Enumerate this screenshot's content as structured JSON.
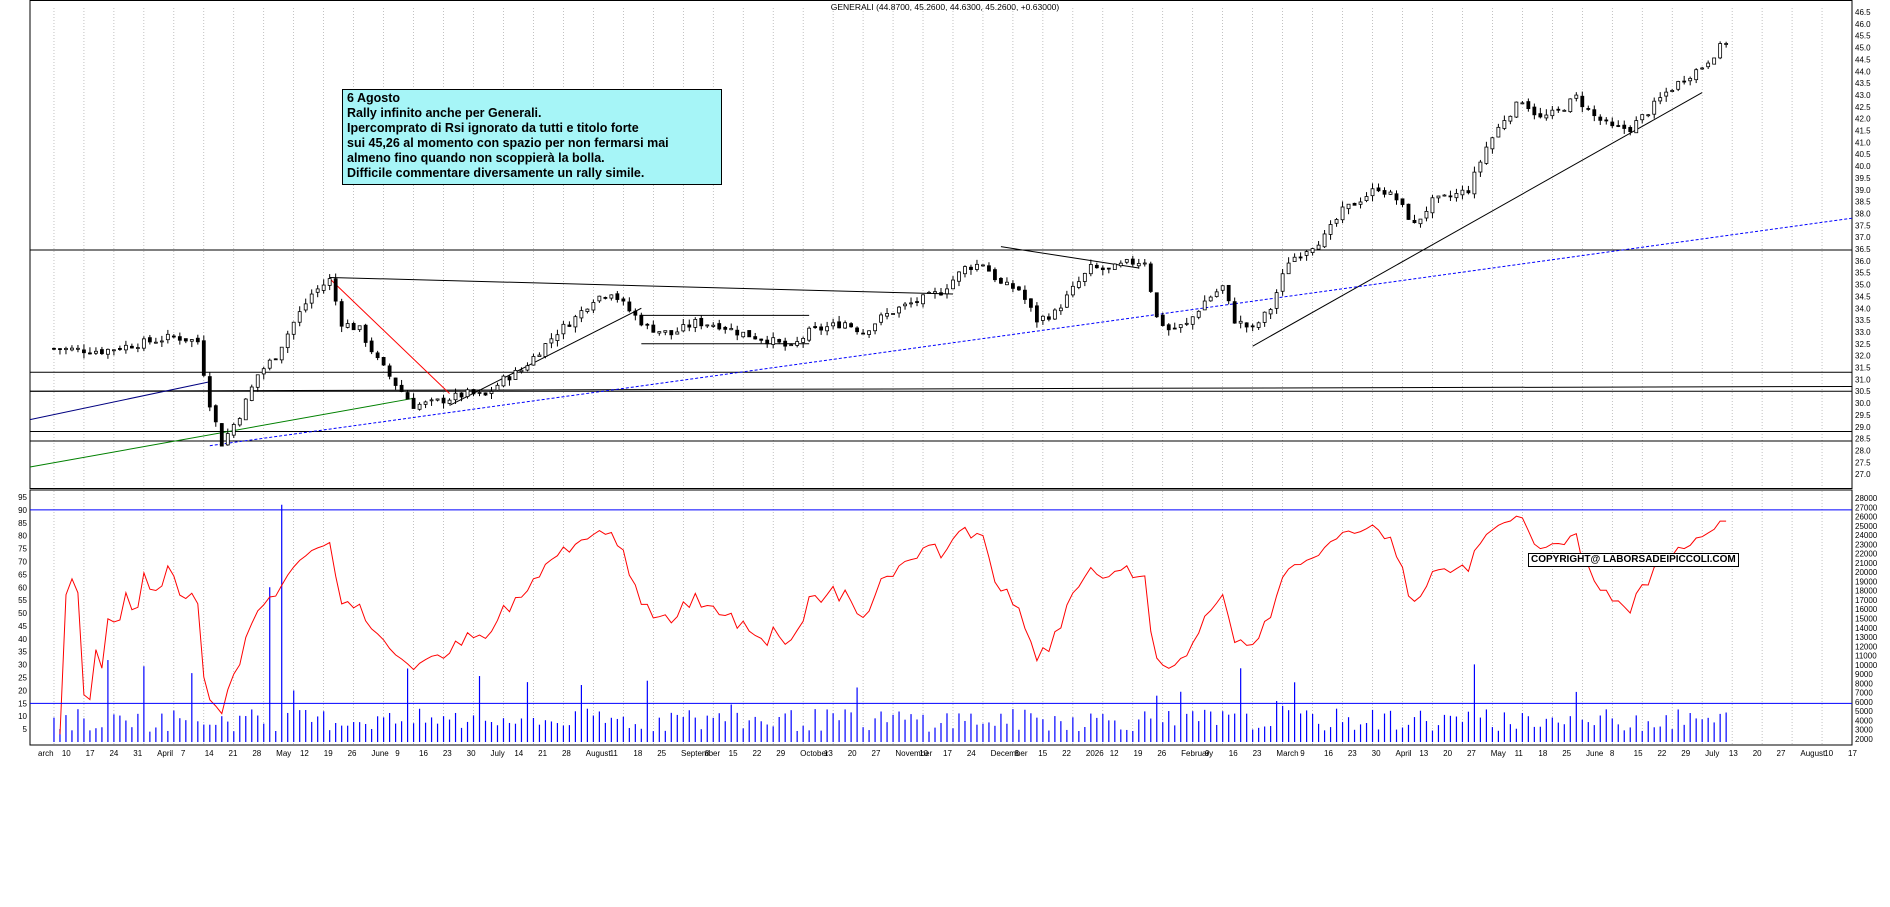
{
  "chart_data": [
    {
      "type": "candlestick",
      "title": "GENERALI (44.8700, 45.2600, 44.6300, 45.2600, +0.63000)",
      "ylim": [
        26.5,
        46.5
      ],
      "ytick_step": 0.5,
      "grid": "vertical dotted",
      "x_labels": [
        "arch",
        "10",
        "17",
        "24",
        "31",
        "April",
        "7",
        "14",
        "21",
        "28",
        "May",
        "12",
        "19",
        "26",
        "June",
        "9",
        "16",
        "23",
        "30",
        "July",
        "14",
        "21",
        "28",
        "August",
        "11",
        "18",
        "25",
        "September",
        "8",
        "15",
        "22",
        "29",
        "October",
        "13",
        "20",
        "27",
        "November",
        "10",
        "17",
        "24",
        "December",
        "8",
        "15",
        "22",
        "2026",
        "12",
        "19",
        "26",
        "February",
        "9",
        "16",
        "23",
        "March",
        "9",
        "16",
        "23",
        "30",
        "April",
        "13",
        "20",
        "27",
        "May",
        "11",
        "18",
        "25",
        "June",
        "8",
        "15",
        "22",
        "29",
        "July",
        "13",
        "20",
        "27",
        "August",
        "10",
        "17"
      ],
      "price_path": [
        [
          0,
          32.3
        ],
        [
          8,
          32.2
        ],
        [
          14,
          32.5
        ],
        [
          20,
          32.8
        ],
        [
          24,
          32.6
        ],
        [
          26,
          30.0
        ],
        [
          28,
          28.3
        ],
        [
          31,
          29.5
        ],
        [
          34,
          31.2
        ],
        [
          37,
          32.0
        ],
        [
          40,
          33.4
        ],
        [
          43,
          34.6
        ],
        [
          46,
          35.2
        ],
        [
          48,
          33.4
        ],
        [
          51,
          33.1
        ],
        [
          54,
          31.8
        ],
        [
          57,
          30.8
        ],
        [
          60,
          29.9
        ],
        [
          63,
          30.0
        ],
        [
          66,
          30.2
        ],
        [
          69,
          30.4
        ],
        [
          72,
          30.3
        ],
        [
          75,
          31.0
        ],
        [
          78,
          31.4
        ],
        [
          81,
          32.2
        ],
        [
          84,
          33.0
        ],
        [
          87,
          33.6
        ],
        [
          90,
          34.4
        ],
        [
          93,
          34.7
        ],
        [
          96,
          33.9
        ],
        [
          99,
          33.2
        ],
        [
          103,
          32.9
        ],
        [
          107,
          33.4
        ],
        [
          111,
          33.3
        ],
        [
          114,
          33.0
        ],
        [
          117,
          32.8
        ],
        [
          120,
          32.6
        ],
        [
          123,
          32.3
        ],
        [
          126,
          33.0
        ],
        [
          129,
          33.2
        ],
        [
          132,
          33.4
        ],
        [
          135,
          33.0
        ],
        [
          138,
          33.6
        ],
        [
          141,
          34.0
        ],
        [
          144,
          34.3
        ],
        [
          148,
          34.7
        ],
        [
          152,
          35.7
        ],
        [
          155,
          35.9
        ],
        [
          158,
          35.0
        ],
        [
          161,
          34.8
        ],
        [
          164,
          33.5
        ],
        [
          167,
          33.8
        ],
        [
          170,
          34.8
        ],
        [
          173,
          35.7
        ],
        [
          176,
          35.6
        ],
        [
          179,
          35.9
        ],
        [
          182,
          36.0
        ],
        [
          184,
          33.6
        ],
        [
          186,
          33.1
        ],
        [
          189,
          33.3
        ],
        [
          192,
          34.3
        ],
        [
          195,
          34.9
        ],
        [
          197,
          33.5
        ],
        [
          200,
          33.1
        ],
        [
          203,
          34.0
        ],
        [
          206,
          36.0
        ],
        [
          209,
          36.5
        ],
        [
          212,
          37.0
        ],
        [
          215,
          38.1
        ],
        [
          218,
          38.6
        ],
        [
          221,
          39.1
        ],
        [
          224,
          38.6
        ],
        [
          227,
          37.5
        ],
        [
          230,
          38.5
        ],
        [
          233,
          38.7
        ],
        [
          236,
          39.0
        ],
        [
          239,
          40.8
        ],
        [
          242,
          42.0
        ],
        [
          245,
          42.8
        ],
        [
          248,
          42.0
        ],
        [
          251,
          42.3
        ],
        [
          254,
          42.9
        ],
        [
          257,
          42.1
        ],
        [
          260,
          41.6
        ],
        [
          263,
          41.6
        ],
        [
          266,
          42.3
        ],
        [
          269,
          43.1
        ],
        [
          272,
          43.7
        ],
        [
          275,
          44.2
        ],
        [
          278,
          45.0
        ],
        [
          279,
          45.26
        ]
      ],
      "trendlines": [
        {
          "color": "#000080",
          "from": [
            -4,
            29.3
          ],
          "to": [
            26,
            30.9
          ]
        },
        {
          "color": "#008000",
          "from": [
            -4,
            27.3
          ],
          "to": [
            60,
            30.2
          ]
        },
        {
          "color": "#ff0000",
          "from": [
            46,
            35.25
          ],
          "to": [
            66,
            30.4
          ]
        },
        {
          "color": "#000000",
          "from": [
            46,
            35.3
          ],
          "to": [
            150,
            34.6
          ]
        },
        {
          "color": "#000000",
          "from": [
            66,
            29.9
          ],
          "to": [
            98,
            34.0
          ]
        },
        {
          "color": "#000000",
          "from": [
            158,
            36.6
          ],
          "to": [
            181,
            35.7
          ]
        },
        {
          "color": "#000000",
          "from": [
            200,
            32.4
          ],
          "to": [
            275,
            43.1
          ]
        },
        {
          "color": "#0000ff",
          "dashed": true,
          "from": [
            26,
            28.2
          ],
          "to": [
            300,
            37.8
          ]
        }
      ],
      "hlines": [
        36.46,
        31.3,
        30.5,
        28.8,
        28.4
      ],
      "channel": {
        "x_from": 98,
        "x_to": 126,
        "top": 33.7,
        "bottom": 32.5
      },
      "sloped_support": {
        "from": [
          -4,
          30.5
        ],
        "to": [
          300,
          30.7
        ]
      }
    },
    {
      "type": "line+bar",
      "left_ylim": [
        0,
        95
      ],
      "left_ticks": [
        5,
        10,
        15,
        20,
        25,
        30,
        35,
        40,
        45,
        50,
        55,
        60,
        65,
        70,
        75,
        80,
        85,
        90,
        95
      ],
      "right_ticks": [
        "2000",
        "3000",
        "4000",
        "5000",
        "6000",
        "7000",
        "8000",
        "9000",
        "10000",
        "11000",
        "12000",
        "13000",
        "14000",
        "15000",
        "16000",
        "17000",
        "18000",
        "19000",
        "20000",
        "21000",
        "22000",
        "23000",
        "24000",
        "25000",
        "26000",
        "27000",
        "28000"
      ],
      "hlines": [
        90,
        15
      ],
      "rsi_color": "#ff0000",
      "volume_color": "#0000ff"
    }
  ],
  "annotation": {
    "lines": [
      "6 Agosto",
      "Rally infinito anche per Generali.",
      "Ipercomprato di Rsi ignorato da tutti e titolo forte",
      "sui 45,26 al momento con spazio per non fermarsi mai",
      "almeno fino quando non scoppierà la bolla.",
      "Difficile commentare diversamente un rally simile."
    ]
  },
  "copyright": "COPYRIGHT@ LABORSADEIPICCOLI.COM",
  "colors": {
    "annotation_bg": "#a6f5f7",
    "rsi": "#ff0000",
    "volume": "#0000ff",
    "support": "#000000"
  }
}
